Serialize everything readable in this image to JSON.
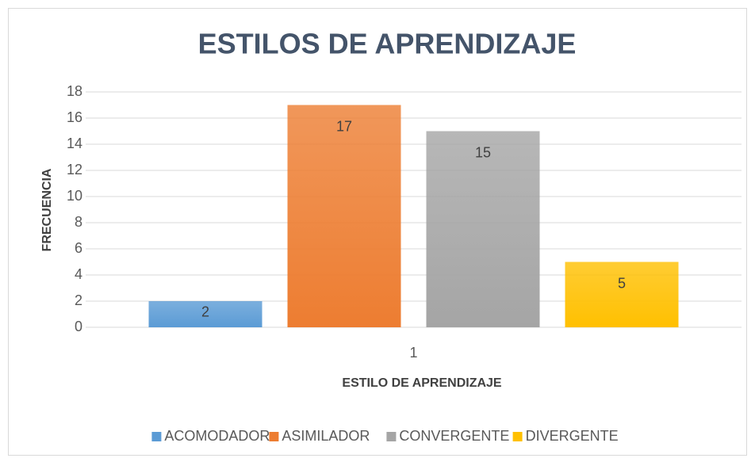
{
  "chart_data": {
    "type": "bar",
    "title": "ESTILOS DE APRENDIZAJE",
    "x_label": "ESTILO DE APRENDIZAJE",
    "y_label": "FRECUENCIA",
    "categories": [
      "1"
    ],
    "series": [
      {
        "name": "ACOMODADOR",
        "color": "#5b9bd5",
        "values": [
          2
        ]
      },
      {
        "name": "ASIMILADOR",
        "color": "#ed7d31",
        "values": [
          17
        ]
      },
      {
        "name": "CONVERGENTE",
        "color": "#a5a5a5",
        "values": [
          15
        ]
      },
      {
        "name": "DIVERGENTE",
        "color": "#ffc000",
        "values": [
          5
        ]
      }
    ],
    "ylim": [
      0,
      18
    ],
    "yticks": [
      0,
      2,
      4,
      6,
      8,
      10,
      12,
      14,
      16,
      18
    ],
    "grid": true,
    "legend": "bottom",
    "data_labels": true
  }
}
